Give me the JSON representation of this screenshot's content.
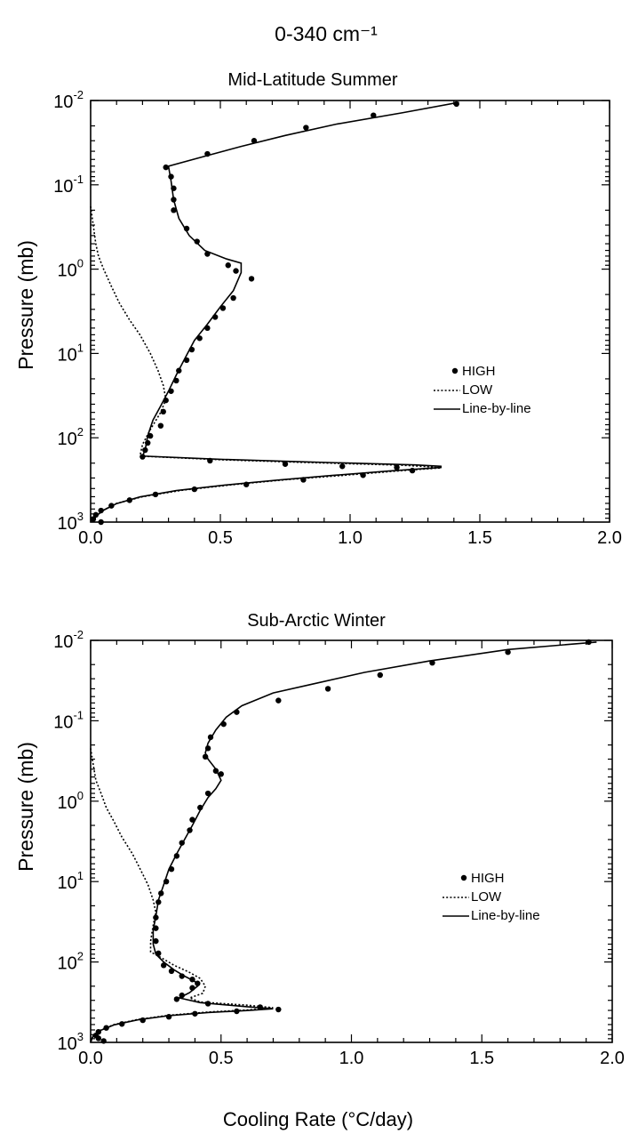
{
  "figure": {
    "header": "0-340 cm⁻¹",
    "x_axis_label": "Cooling Rate (°C/day)"
  },
  "chart_data": [
    {
      "type": "line",
      "title": "Mid-Latitude Summer",
      "xlabel": "",
      "ylabel": "Pressure (mb)",
      "xlim": [
        0.0,
        2.0
      ],
      "ylim": [
        1000,
        0.01
      ],
      "yscale": "log",
      "grid": false,
      "legend_placement": "right",
      "x_ticks": [
        "0.0",
        "0.5",
        "1.0",
        "1.5",
        "2.0"
      ],
      "y_ticks": [
        {
          "base": "10",
          "exp": "-2"
        },
        {
          "base": "10",
          "exp": "-1"
        },
        {
          "base": "10",
          "exp": "0"
        },
        {
          "base": "10",
          "exp": "1"
        },
        {
          "base": "10",
          "exp": "2"
        },
        {
          "base": "10",
          "exp": "3"
        }
      ],
      "series": [
        {
          "name": "HIGH",
          "style": "points",
          "points": [
            [
              1.41,
              0.011
            ],
            [
              1.09,
              0.015
            ],
            [
              0.83,
              0.021
            ],
            [
              0.63,
              0.03
            ],
            [
              0.45,
              0.043
            ],
            [
              0.29,
              0.062
            ],
            [
              0.31,
              0.08
            ],
            [
              0.32,
              0.11
            ],
            [
              0.32,
              0.15
            ],
            [
              0.32,
              0.2
            ],
            [
              0.37,
              0.33
            ],
            [
              0.41,
              0.47
            ],
            [
              0.45,
              0.66
            ],
            [
              0.53,
              0.9
            ],
            [
              0.56,
              1.05
            ],
            [
              0.62,
              1.3
            ],
            [
              0.55,
              2.2
            ],
            [
              0.51,
              2.9
            ],
            [
              0.48,
              3.7
            ],
            [
              0.45,
              5
            ],
            [
              0.42,
              6.6
            ],
            [
              0.39,
              9
            ],
            [
              0.37,
              12
            ],
            [
              0.34,
              16
            ],
            [
              0.33,
              21
            ],
            [
              0.31,
              28
            ],
            [
              0.29,
              36
            ],
            [
              0.28,
              49
            ],
            [
              0.27,
              72
            ],
            [
              0.23,
              95
            ],
            [
              0.22,
              115
            ],
            [
              0.21,
              140
            ],
            [
              0.2,
              168
            ],
            [
              0.46,
              187
            ],
            [
              0.75,
              205
            ],
            [
              0.97,
              218
            ],
            [
              1.18,
              225
            ],
            [
              1.24,
              245
            ],
            [
              1.05,
              278
            ],
            [
              0.82,
              315
            ],
            [
              0.6,
              358
            ],
            [
              0.4,
              408
            ],
            [
              0.25,
              470
            ],
            [
              0.15,
              550
            ],
            [
              0.08,
              640
            ],
            [
              0.04,
              730
            ],
            [
              0.02,
              820
            ],
            [
              0.01,
              920
            ],
            [
              0.04,
              1000
            ]
          ]
        },
        {
          "name": "LOW",
          "style": "dotted",
          "points": [
            [
              0.0,
              0.18
            ],
            [
              0.01,
              0.3
            ],
            [
              0.02,
              0.5
            ],
            [
              0.03,
              0.7
            ],
            [
              0.05,
              1.0
            ],
            [
              0.08,
              1.6
            ],
            [
              0.11,
              2.5
            ],
            [
              0.15,
              4.0
            ],
            [
              0.19,
              6.0
            ],
            [
              0.23,
              10
            ],
            [
              0.26,
              16
            ],
            [
              0.28,
              24
            ],
            [
              0.29,
              35
            ],
            [
              0.27,
              50
            ],
            [
              0.23,
              80
            ],
            [
              0.2,
              120
            ],
            [
              0.19,
              165
            ],
            [
              0.5,
              182
            ],
            [
              0.8,
              195
            ],
            [
              1.05,
              205
            ],
            [
              1.2,
              212
            ],
            [
              1.3,
              220
            ],
            [
              1.35,
              228
            ],
            [
              1.2,
              245
            ],
            [
              0.97,
              280
            ],
            [
              0.75,
              315
            ],
            [
              0.55,
              360
            ],
            [
              0.35,
              420
            ],
            [
              0.2,
              500
            ],
            [
              0.1,
              600
            ],
            [
              0.05,
              720
            ],
            [
              0.02,
              850
            ],
            [
              0.0,
              1000
            ]
          ]
        },
        {
          "name": "Line-by-line",
          "style": "solid",
          "points": [
            [
              1.42,
              0.0105
            ],
            [
              1.2,
              0.014
            ],
            [
              0.95,
              0.019
            ],
            [
              0.75,
              0.026
            ],
            [
              0.58,
              0.035
            ],
            [
              0.45,
              0.045
            ],
            [
              0.3,
              0.06
            ],
            [
              0.31,
              0.09
            ],
            [
              0.32,
              0.15
            ],
            [
              0.34,
              0.25
            ],
            [
              0.38,
              0.4
            ],
            [
              0.44,
              0.6
            ],
            [
              0.52,
              0.75
            ],
            [
              0.58,
              0.85
            ],
            [
              0.58,
              1.1
            ],
            [
              0.55,
              1.8
            ],
            [
              0.5,
              2.8
            ],
            [
              0.45,
              4.5
            ],
            [
              0.4,
              7
            ],
            [
              0.36,
              12
            ],
            [
              0.33,
              18
            ],
            [
              0.3,
              28
            ],
            [
              0.27,
              42
            ],
            [
              0.24,
              62
            ],
            [
              0.22,
              95
            ],
            [
              0.21,
              140
            ],
            [
              0.2,
              165
            ],
            [
              0.5,
              180
            ],
            [
              0.8,
              192
            ],
            [
              1.05,
              202
            ],
            [
              1.25,
              210
            ],
            [
              1.35,
              218
            ],
            [
              1.35,
              225
            ],
            [
              1.15,
              248
            ],
            [
              0.93,
              280
            ],
            [
              0.72,
              318
            ],
            [
              0.52,
              363
            ],
            [
              0.33,
              423
            ],
            [
              0.19,
              503
            ],
            [
              0.1,
              603
            ],
            [
              0.05,
              723
            ],
            [
              0.02,
              853
            ],
            [
              0.01,
              1000
            ]
          ]
        }
      ]
    },
    {
      "type": "line",
      "title": "Sub-Arctic Winter",
      "xlabel": "Cooling Rate (°C/day)",
      "ylabel": "Pressure (mb)",
      "xlim": [
        0.0,
        2.0
      ],
      "ylim": [
        1000,
        0.01
      ],
      "yscale": "log",
      "grid": false,
      "legend_placement": "right",
      "x_ticks": [
        "0.0",
        "0.5",
        "1.0",
        "1.5",
        "2.0"
      ],
      "y_ticks": [
        {
          "base": "10",
          "exp": "-2"
        },
        {
          "base": "10",
          "exp": "-1"
        },
        {
          "base": "10",
          "exp": "0"
        },
        {
          "base": "10",
          "exp": "1"
        },
        {
          "base": "10",
          "exp": "2"
        },
        {
          "base": "10",
          "exp": "3"
        }
      ],
      "series": [
        {
          "name": "HIGH",
          "style": "points",
          "points": [
            [
              1.91,
              0.0105
            ],
            [
              1.6,
              0.014
            ],
            [
              1.31,
              0.019
            ],
            [
              1.11,
              0.027
            ],
            [
              0.91,
              0.04
            ],
            [
              0.72,
              0.056
            ],
            [
              0.56,
              0.078
            ],
            [
              0.51,
              0.11
            ],
            [
              0.46,
              0.16
            ],
            [
              0.45,
              0.22
            ],
            [
              0.44,
              0.28
            ],
            [
              0.48,
              0.42
            ],
            [
              0.5,
              0.46
            ],
            [
              0.45,
              0.8
            ],
            [
              0.42,
              1.2
            ],
            [
              0.39,
              1.7
            ],
            [
              0.38,
              2.3
            ],
            [
              0.35,
              3.3
            ],
            [
              0.33,
              4.8
            ],
            [
              0.31,
              7
            ],
            [
              0.29,
              10
            ],
            [
              0.27,
              14
            ],
            [
              0.26,
              18
            ],
            [
              0.25,
              28
            ],
            [
              0.25,
              38
            ],
            [
              0.25,
              55
            ],
            [
              0.26,
              78
            ],
            [
              0.28,
              110
            ],
            [
              0.31,
              130
            ],
            [
              0.35,
              150
            ],
            [
              0.39,
              165
            ],
            [
              0.41,
              185
            ],
            [
              0.39,
              210
            ],
            [
              0.35,
              260
            ],
            [
              0.33,
              290
            ],
            [
              0.45,
              330
            ],
            [
              0.65,
              365
            ],
            [
              0.72,
              390
            ],
            [
              0.56,
              410
            ],
            [
              0.4,
              440
            ],
            [
              0.3,
              480
            ],
            [
              0.2,
              530
            ],
            [
              0.12,
              590
            ],
            [
              0.06,
              660
            ],
            [
              0.03,
              740
            ],
            [
              0.02,
              820
            ],
            [
              0.03,
              890
            ],
            [
              0.05,
              960
            ]
          ]
        },
        {
          "name": "LOW",
          "style": "dotted",
          "points": [
            [
              0.0,
              0.22
            ],
            [
              0.01,
              0.35
            ],
            [
              0.02,
              0.55
            ],
            [
              0.04,
              0.8
            ],
            [
              0.06,
              1.2
            ],
            [
              0.09,
              1.8
            ],
            [
              0.12,
              2.8
            ],
            [
              0.16,
              4.5
            ],
            [
              0.19,
              7
            ],
            [
              0.22,
              11
            ],
            [
              0.24,
              17
            ],
            [
              0.25,
              24
            ],
            [
              0.24,
              35
            ],
            [
              0.23,
              55
            ],
            [
              0.23,
              75
            ],
            [
              0.27,
              88
            ],
            [
              0.32,
              110
            ],
            [
              0.38,
              135
            ],
            [
              0.42,
              160
            ],
            [
              0.44,
              200
            ],
            [
              0.43,
              245
            ],
            [
              0.38,
              280
            ],
            [
              0.42,
              315
            ],
            [
              0.6,
              345
            ],
            [
              0.7,
              370
            ],
            [
              0.6,
              395
            ],
            [
              0.45,
              420
            ],
            [
              0.3,
              460
            ],
            [
              0.18,
              520
            ],
            [
              0.09,
              600
            ],
            [
              0.04,
              700
            ],
            [
              0.01,
              820
            ],
            [
              0.0,
              1000
            ]
          ]
        },
        {
          "name": "Line-by-line",
          "style": "solid",
          "points": [
            [
              1.94,
              0.0105
            ],
            [
              1.6,
              0.013
            ],
            [
              1.3,
              0.018
            ],
            [
              1.05,
              0.025
            ],
            [
              0.85,
              0.035
            ],
            [
              0.7,
              0.045
            ],
            [
              0.58,
              0.065
            ],
            [
              0.52,
              0.09
            ],
            [
              0.48,
              0.13
            ],
            [
              0.45,
              0.19
            ],
            [
              0.44,
              0.25
            ],
            [
              0.45,
              0.3
            ],
            [
              0.48,
              0.4
            ],
            [
              0.5,
              0.55
            ],
            [
              0.48,
              0.7
            ],
            [
              0.45,
              0.9
            ],
            [
              0.42,
              1.3
            ],
            [
              0.39,
              2.0
            ],
            [
              0.36,
              3
            ],
            [
              0.33,
              4.5
            ],
            [
              0.3,
              7
            ],
            [
              0.28,
              11
            ],
            [
              0.26,
              17
            ],
            [
              0.25,
              27
            ],
            [
              0.24,
              40
            ],
            [
              0.24,
              60
            ],
            [
              0.25,
              80
            ],
            [
              0.28,
              100
            ],
            [
              0.32,
              125
            ],
            [
              0.36,
              150
            ],
            [
              0.4,
              175
            ],
            [
              0.41,
              200
            ],
            [
              0.38,
              240
            ],
            [
              0.34,
              280
            ],
            [
              0.42,
              320
            ],
            [
              0.6,
              360
            ],
            [
              0.7,
              382
            ],
            [
              0.6,
              402
            ],
            [
              0.45,
              425
            ],
            [
              0.3,
              465
            ],
            [
              0.18,
              525
            ],
            [
              0.09,
              605
            ],
            [
              0.04,
              705
            ],
            [
              0.01,
              825
            ],
            [
              0.0,
              1000
            ]
          ]
        }
      ]
    }
  ]
}
